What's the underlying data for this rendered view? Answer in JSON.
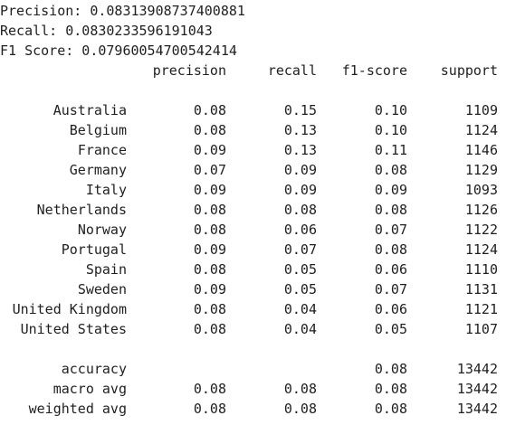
{
  "summary": {
    "precision_line": "Precision: 0.08313908737400881",
    "recall_line": "Recall: 0.0830233596191043",
    "f1_line": "F1 Score: 0.07960054700542414"
  },
  "report": {
    "headers": [
      "precision",
      "recall",
      "f1-score",
      "support"
    ],
    "rows": [
      {
        "label": "Australia",
        "precision": "0.08",
        "recall": "0.15",
        "f1": "0.10",
        "support": "1109"
      },
      {
        "label": "Belgium",
        "precision": "0.08",
        "recall": "0.13",
        "f1": "0.10",
        "support": "1124"
      },
      {
        "label": "France",
        "precision": "0.09",
        "recall": "0.13",
        "f1": "0.11",
        "support": "1146"
      },
      {
        "label": "Germany",
        "precision": "0.07",
        "recall": "0.09",
        "f1": "0.08",
        "support": "1129"
      },
      {
        "label": "Italy",
        "precision": "0.09",
        "recall": "0.09",
        "f1": "0.09",
        "support": "1093"
      },
      {
        "label": "Netherlands",
        "precision": "0.08",
        "recall": "0.08",
        "f1": "0.08",
        "support": "1126"
      },
      {
        "label": "Norway",
        "precision": "0.08",
        "recall": "0.06",
        "f1": "0.07",
        "support": "1122"
      },
      {
        "label": "Portugal",
        "precision": "0.09",
        "recall": "0.07",
        "f1": "0.08",
        "support": "1124"
      },
      {
        "label": "Spain",
        "precision": "0.08",
        "recall": "0.05",
        "f1": "0.06",
        "support": "1110"
      },
      {
        "label": "Sweden",
        "precision": "0.09",
        "recall": "0.05",
        "f1": "0.07",
        "support": "1131"
      },
      {
        "label": "United Kingdom",
        "precision": "0.08",
        "recall": "0.04",
        "f1": "0.06",
        "support": "1121"
      },
      {
        "label": "United States",
        "precision": "0.08",
        "recall": "0.04",
        "f1": "0.05",
        "support": "1107"
      }
    ],
    "totals": [
      {
        "label": "accuracy",
        "precision": "",
        "recall": "",
        "f1": "0.08",
        "support": "13442"
      },
      {
        "label": "macro avg",
        "precision": "0.08",
        "recall": "0.08",
        "f1": "0.08",
        "support": "13442"
      },
      {
        "label": "weighted avg",
        "precision": "0.08",
        "recall": "0.08",
        "f1": "0.08",
        "support": "13442"
      }
    ]
  }
}
